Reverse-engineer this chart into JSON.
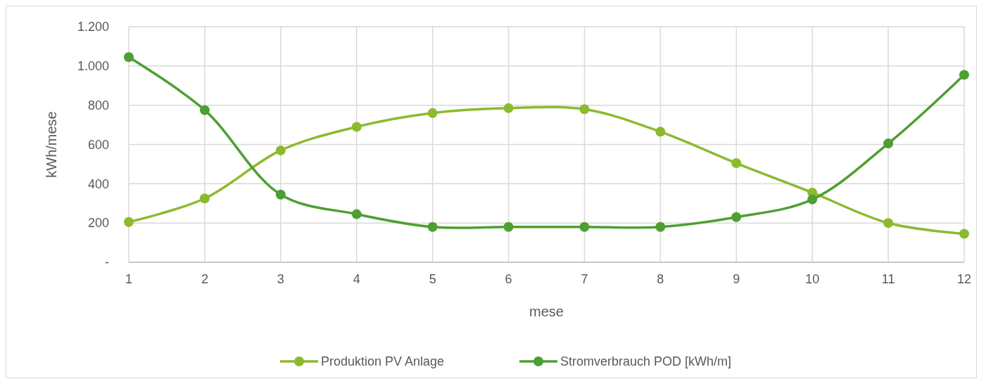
{
  "chart_data": {
    "type": "line",
    "xlabel": "mese",
    "ylabel": "kWh/mese",
    "x": [
      1,
      2,
      3,
      4,
      5,
      6,
      7,
      8,
      9,
      10,
      11,
      12
    ],
    "xlim": [
      1,
      12
    ],
    "xticks": [
      1,
      2,
      3,
      4,
      5,
      6,
      7,
      8,
      9,
      10,
      11,
      12
    ],
    "ylim": [
      0,
      1200
    ],
    "yticks": [
      {
        "value": 0,
        "label": "-"
      },
      200,
      400,
      600,
      800,
      {
        "value": 1000,
        "label": "1.000"
      },
      {
        "value": 1200,
        "label": "1.200"
      }
    ],
    "series": [
      {
        "name": "Produktion PV Anlage",
        "color": "#8cba2e",
        "values": [
          205,
          325,
          570,
          690,
          760,
          785,
          780,
          665,
          505,
          355,
          200,
          145
        ]
      },
      {
        "name": "Stromverbrauch POD [kWh/m]",
        "color": "#4e9f33",
        "values": [
          1045,
          775,
          345,
          245,
          180,
          180,
          180,
          180,
          230,
          320,
          605,
          955
        ]
      }
    ],
    "grid": true,
    "legend": "bottom",
    "marker": "circle",
    "line_style": "solid"
  }
}
